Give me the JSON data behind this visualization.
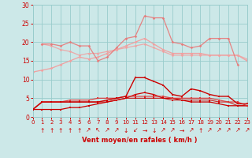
{
  "bg_color": "#cce8e8",
  "grid_color": "#99cccc",
  "xlabel": "Vent moyen/en rafales ( km/h )",
  "xlabel_color": "#cc0000",
  "tick_color": "#cc0000",
  "label_color": "#cc0000",
  "ylim": [
    0,
    30
  ],
  "yticks": [
    0,
    5,
    10,
    15,
    20,
    25,
    30
  ],
  "xlim": [
    0,
    23
  ],
  "hours": [
    0,
    1,
    2,
    3,
    4,
    5,
    6,
    7,
    8,
    9,
    10,
    11,
    12,
    13,
    14,
    15,
    16,
    17,
    18,
    19,
    20,
    21,
    22,
    23
  ],
  "line_upper_spike": [
    null,
    19.5,
    19.5,
    19,
    20,
    19,
    19,
    15,
    16,
    18.5,
    21,
    21.5,
    27,
    26.5,
    26.5,
    20,
    19.5,
    18.5,
    19,
    21,
    21,
    21,
    14,
    null
  ],
  "line_upper_flat1": [
    12,
    12.5,
    13,
    14,
    15,
    16,
    15.5,
    16,
    17,
    18,
    19,
    20,
    21,
    19.5,
    18,
    17,
    17,
    17,
    17,
    16.5,
    16.5,
    16.5,
    16.5,
    15
  ],
  "line_upper_flat2": [
    null,
    19.5,
    19,
    18,
    17.5,
    16.5,
    17,
    17,
    17.5,
    18,
    18.5,
    19,
    19.5,
    18.5,
    17.5,
    16.5,
    16.5,
    16.5,
    16.5,
    16.5,
    16.5,
    16.5,
    16.5,
    15.5
  ],
  "line_lower_spike": [
    2,
    4,
    4,
    4,
    4,
    4,
    4,
    4,
    4.5,
    5,
    5.5,
    10.5,
    10.5,
    9.5,
    8.5,
    6,
    5.5,
    7.5,
    7,
    6,
    5.5,
    5.5,
    3.5,
    3.5
  ],
  "line_lower_flat1": [
    2,
    4,
    4,
    4,
    4.5,
    4.5,
    4.5,
    5,
    5,
    5,
    5.5,
    5.5,
    5.5,
    5.5,
    5.5,
    5,
    5,
    5,
    5,
    5,
    4.5,
    4,
    4,
    3
  ],
  "line_lower_flat2": [
    2,
    4,
    4,
    4,
    4,
    4,
    4,
    4,
    4,
    4.5,
    5,
    5,
    5,
    5,
    5,
    4.5,
    4.5,
    4.5,
    4.5,
    4.5,
    4,
    4,
    3,
    3
  ],
  "line_lower_base": [
    2,
    2,
    2,
    2,
    2.5,
    2.5,
    3,
    3.5,
    4,
    4.5,
    5,
    6,
    6.5,
    6,
    5,
    5,
    4.5,
    4,
    4,
    4,
    3.5,
    3,
    3,
    3
  ],
  "wind_dirs": [
    "↑",
    "↑",
    "↑",
    "↑",
    "↑",
    "↗",
    "↖",
    "↗",
    "↗",
    "↓",
    "↙",
    "→",
    "↓",
    "↗",
    "↗",
    "→",
    "↗",
    "↑",
    "↗",
    "↗",
    "↗",
    "↗",
    "↗"
  ],
  "pink_light": "#f0a0a0",
  "pink_mid": "#e87878",
  "dark_red": "#cc0000",
  "med_red": "#dd3333"
}
